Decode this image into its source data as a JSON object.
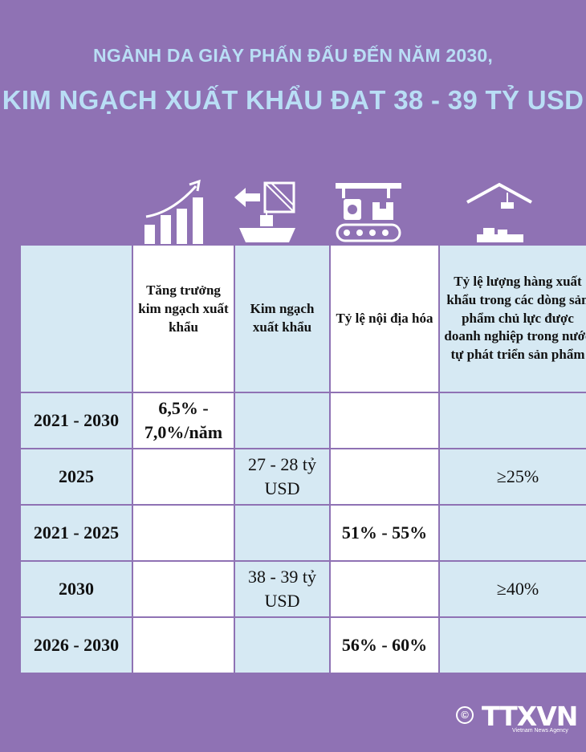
{
  "title": {
    "line1": "NGÀNH DA GIÀY PHẤN ĐẤU ĐẾN NĂM 2030,",
    "line2": "KIM NGẠCH XUẤT KHẨU ĐẠT 38 - 39 TỶ USD"
  },
  "icons": [
    "growth-chart-icon",
    "export-ship-icon",
    "factory-conveyor-icon",
    "warehouse-crane-icon"
  ],
  "table": {
    "headers": [
      "",
      "Tăng trưởng kim ngạch xuất khẩu",
      "Kim ngạch xuất khẩu",
      "Tỷ lệ nội địa hóa",
      "Tỷ lệ lượng hàng xuất khẩu trong các dòng sản phẩm chủ lực được doanh nghiệp trong nước tự phát triển sản phẩm"
    ],
    "rows": [
      {
        "period": "2021 - 2030",
        "growth": "6,5% - 7,0%/năm",
        "export": "",
        "localization": "",
        "share": ""
      },
      {
        "period": "2025",
        "growth": "",
        "export": "27 - 28 tỷ USD",
        "localization": "",
        "share": "≥25%"
      },
      {
        "period": "2021 - 2025",
        "growth": "",
        "export": "",
        "localization": "51% - 55%",
        "share": ""
      },
      {
        "period": "2030",
        "growth": "",
        "export": "38 - 39 tỷ USD",
        "localization": "",
        "share": "≥40%"
      },
      {
        "period": "2026 - 2030",
        "growth": "",
        "export": "",
        "localization": "56% - 60%",
        "share": ""
      }
    ]
  },
  "footer": {
    "copyright_symbol": "©",
    "logo": "TTXVN",
    "agency": "Vietnam News Agency"
  },
  "colors": {
    "background": "#8f72b4",
    "title": "#b9def5",
    "cell_light": "#d6e9f3",
    "cell_white": "#ffffff"
  }
}
